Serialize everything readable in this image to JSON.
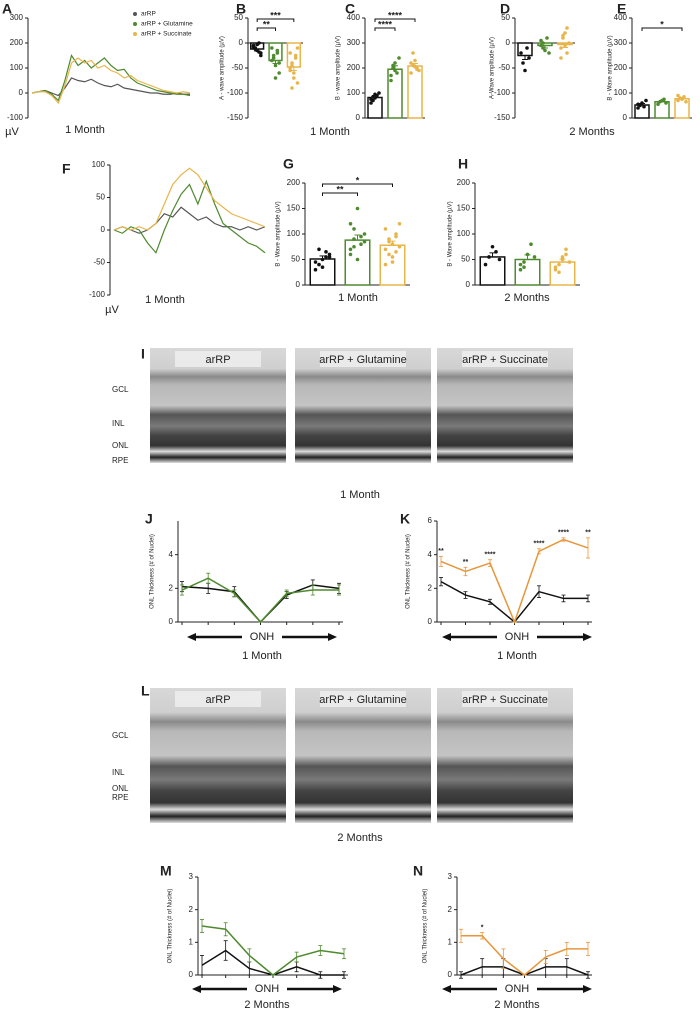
{
  "chart_data": [
    {
      "type": "line",
      "label": "A",
      "unit": "µV",
      "caption": "1 Month",
      "ylim": [
        -100,
        300
      ],
      "yticks": [
        -100,
        0,
        100,
        200,
        300
      ],
      "series": [
        {
          "name": "arRP",
          "color": "#555555",
          "values": [
            0,
            5,
            10,
            0,
            -10,
            20,
            60,
            50,
            45,
            55,
            40,
            30,
            25,
            35,
            20,
            15,
            10,
            5,
            0,
            0,
            -5,
            -5,
            0,
            -5,
            -5
          ]
        },
        {
          "name": "arRP + Glutamine",
          "color": "#4e8a2e",
          "values": [
            0,
            5,
            10,
            -5,
            -30,
            50,
            150,
            110,
            130,
            100,
            120,
            140,
            110,
            90,
            95,
            60,
            40,
            30,
            20,
            10,
            5,
            0,
            -5,
            -5,
            -10
          ]
        },
        {
          "name": "arRP + Succinate",
          "color": "#e8b54a",
          "values": [
            0,
            5,
            5,
            -10,
            -40,
            30,
            120,
            140,
            120,
            130,
            100,
            110,
            90,
            80,
            60,
            70,
            50,
            40,
            30,
            20,
            10,
            5,
            0,
            5,
            0
          ]
        }
      ]
    },
    {
      "type": "bar",
      "label": "B",
      "ylabel": "A - wave amplitude (µV)",
      "caption": "1 Month",
      "ylim": [
        -150,
        50
      ],
      "yticks": [
        -150,
        -100,
        -50,
        0,
        50
      ],
      "colors": [
        "#111111",
        "#4e8a2e",
        "#e8b54a"
      ],
      "values": [
        -12,
        -35,
        -48
      ],
      "errors": [
        4,
        6,
        7
      ],
      "points": [
        [
          -5,
          -10,
          -15,
          0,
          -20,
          -8,
          -12,
          -3,
          -18,
          -25
        ],
        [
          -10,
          -30,
          -45,
          -20,
          -60,
          -35,
          -25,
          -70,
          -15,
          -40
        ],
        [
          -20,
          -40,
          -60,
          -30,
          -80,
          -50,
          -45,
          -70,
          -25,
          -10,
          -55,
          -90
        ]
      ],
      "annotations": [
        {
          "text": "**",
          "groups": [
            0,
            1
          ]
        },
        {
          "text": "***",
          "groups": [
            0,
            2
          ]
        }
      ]
    },
    {
      "type": "bar",
      "label": "C",
      "ylabel": "B - wave amplitude (µV)",
      "ylim": [
        0,
        400
      ],
      "yticks": [
        0,
        100,
        200,
        300,
        400
      ],
      "colors": [
        "#111111",
        "#4e8a2e",
        "#e8b54a"
      ],
      "values": [
        82,
        195,
        208
      ],
      "errors": [
        8,
        14,
        10
      ],
      "points": [
        [
          60,
          70,
          80,
          90,
          100,
          75,
          85,
          95
        ],
        [
          150,
          200,
          220,
          180,
          240,
          170,
          210,
          190
        ],
        [
          180,
          210,
          230,
          200,
          190,
          220,
          260,
          205,
          195
        ]
      ],
      "annotations": [
        {
          "text": "****",
          "groups": [
            0,
            1
          ]
        },
        {
          "text": "****",
          "groups": [
            0,
            2
          ]
        }
      ]
    },
    {
      "type": "bar",
      "label": "D",
      "ylabel": "A-Wave amplitude (µV)",
      "caption": "2 Months",
      "ylim": [
        -150,
        50
      ],
      "yticks": [
        -150,
        -100,
        -50,
        0,
        50
      ],
      "colors": [
        "#111111",
        "#4e8a2e",
        "#e8b54a"
      ],
      "values": [
        -25,
        -5,
        -3
      ],
      "errors": [
        8,
        5,
        6
      ],
      "points": [
        [
          -20,
          -40,
          -55,
          -10,
          -30
        ],
        [
          -5,
          0,
          -15,
          10,
          -20,
          5,
          -10
        ],
        [
          -10,
          10,
          20,
          -20,
          0,
          -30,
          15,
          -5,
          30
        ]
      ],
      "annotations": []
    },
    {
      "type": "bar",
      "label": "E",
      "ylabel": "B - Wave amplitude (µV)",
      "ylim": [
        0,
        400
      ],
      "yticks": [
        0,
        100,
        200,
        300,
        400
      ],
      "colors": [
        "#111111",
        "#4e8a2e",
        "#e8b54a"
      ],
      "values": [
        52,
        65,
        77
      ],
      "errors": [
        6,
        5,
        5
      ],
      "points": [
        [
          40,
          50,
          60,
          45,
          70,
          55
        ],
        [
          55,
          65,
          70,
          75,
          60
        ],
        [
          70,
          80,
          75,
          85,
          65,
          90
        ]
      ],
      "annotations": [
        {
          "text": "*",
          "groups": [
            0,
            2
          ]
        }
      ]
    },
    {
      "type": "line",
      "label": "F",
      "unit": "µV",
      "caption": "1 Month",
      "ylim": [
        -100,
        100
      ],
      "yticks": [
        -100,
        -50,
        0,
        50,
        100
      ],
      "series": [
        {
          "color": "#555555",
          "values": [
            0,
            5,
            0,
            -5,
            0,
            10,
            25,
            20,
            35,
            25,
            15,
            20,
            10,
            5,
            5,
            0,
            5,
            0,
            5
          ]
        },
        {
          "color": "#4e8a2e",
          "values": [
            0,
            -5,
            5,
            0,
            -20,
            -35,
            0,
            30,
            55,
            70,
            40,
            75,
            40,
            10,
            0,
            -10,
            -20,
            -25,
            -35
          ]
        },
        {
          "color": "#e8b54a",
          "values": [
            0,
            5,
            0,
            5,
            0,
            10,
            40,
            70,
            85,
            95,
            85,
            65,
            45,
            35,
            25,
            20,
            15,
            10,
            5
          ]
        }
      ]
    },
    {
      "type": "bar",
      "label": "G",
      "ylabel": "B - Wave amplitude (µV)",
      "caption": "1 Month",
      "ylim": [
        0,
        200
      ],
      "yticks": [
        0,
        50,
        100,
        150,
        200
      ],
      "colors": [
        "#111111",
        "#4e8a2e",
        "#e8b54a"
      ],
      "values": [
        51,
        88,
        78
      ],
      "errors": [
        6,
        10,
        8
      ],
      "points": [
        [
          30,
          40,
          50,
          55,
          60,
          45,
          70,
          35,
          65,
          55
        ],
        [
          60,
          90,
          150,
          80,
          100,
          70,
          110,
          50,
          95,
          85,
          120,
          75
        ],
        [
          40,
          60,
          80,
          100,
          120,
          70,
          90,
          55,
          65,
          75,
          110,
          85,
          45,
          95
        ]
      ],
      "annotations": [
        {
          "text": "**",
          "groups": [
            0,
            1
          ]
        },
        {
          "text": "*",
          "groups": [
            0,
            2
          ]
        }
      ]
    },
    {
      "type": "bar",
      "label": "H",
      "ylabel": "B - Wave amplitude (µV)",
      "caption": "2 Months",
      "ylim": [
        0,
        200
      ],
      "yticks": [
        0,
        50,
        100,
        150,
        200
      ],
      "colors": [
        "#111111",
        "#4e8a2e",
        "#e8b54a"
      ],
      "values": [
        55,
        50,
        45
      ],
      "errors": [
        8,
        9,
        6
      ],
      "points": [
        [
          40,
          55,
          75,
          65,
          50
        ],
        [
          30,
          45,
          60,
          80,
          55,
          40,
          35
        ],
        [
          30,
          40,
          50,
          60,
          45,
          35,
          25,
          55,
          70
        ]
      ],
      "annotations": []
    },
    {
      "type": "errorline",
      "label": "J",
      "ylabel": "ONL Thickness (# of Nuclei)",
      "xlabel": "ONH",
      "caption": "1 Month",
      "ylim": [
        0,
        6
      ],
      "yticks": [
        0,
        2,
        4
      ],
      "series": [
        {
          "color": "#111111",
          "values": [
            2.1,
            2.0,
            1.8,
            0,
            1.6,
            2.2,
            2.0
          ],
          "errors": [
            0.3,
            0.3,
            0.3,
            0,
            0.2,
            0.3,
            0.3
          ]
        },
        {
          "color": "#4e8a2e",
          "values": [
            1.9,
            2.6,
            1.7,
            0,
            1.7,
            1.9,
            1.9
          ],
          "errors": [
            0.3,
            0.3,
            0.2,
            0,
            0.2,
            0.3,
            0.3
          ]
        }
      ]
    },
    {
      "type": "errorline",
      "label": "K",
      "ylabel": "ONL Thickness (# of Nuclei)",
      "xlabel": "ONH",
      "caption": "1 Month",
      "ylim": [
        0,
        6
      ],
      "yticks": [
        0,
        2,
        4,
        6
      ],
      "series": [
        {
          "color": "#111111",
          "values": [
            2.4,
            1.6,
            1.2,
            0,
            1.8,
            1.4,
            1.4
          ],
          "errors": [
            0.25,
            0.2,
            0.15,
            0,
            0.35,
            0.2,
            0.2
          ]
        },
        {
          "color": "#e8963a",
          "values": [
            3.6,
            3.0,
            3.5,
            0,
            4.2,
            4.9,
            4.4
          ],
          "errors": [
            0.3,
            0.25,
            0.2,
            0,
            0.15,
            0.1,
            0.6
          ],
          "point_labels": [
            "**",
            "**",
            "****",
            null,
            "****",
            "****",
            "**"
          ]
        }
      ]
    },
    {
      "type": "errorline",
      "label": "M",
      "ylabel": "ONL Thickness (# of Nuclei)",
      "xlabel": "ONH",
      "caption": "2 Months",
      "ylim": [
        0,
        3
      ],
      "yticks": [
        0,
        1,
        2,
        3
      ],
      "series": [
        {
          "color": "#111111",
          "values": [
            0.3,
            0.75,
            0.2,
            0,
            0.25,
            0,
            0
          ],
          "errors": [
            0.3,
            0.3,
            0.2,
            0,
            0.15,
            0.1,
            0.1
          ]
        },
        {
          "color": "#4e8a2e",
          "values": [
            1.5,
            1.4,
            0.6,
            0,
            0.55,
            0.75,
            0.65
          ],
          "errors": [
            0.2,
            0.2,
            0.2,
            0,
            0.15,
            0.15,
            0.15
          ]
        }
      ]
    },
    {
      "type": "errorline",
      "label": "N",
      "ylabel": "ONL Thickness (# of Nuclei)",
      "xlabel": "ONH",
      "caption": "2 Months",
      "ylim": [
        0,
        3
      ],
      "yticks": [
        0,
        1,
        2,
        3
      ],
      "series": [
        {
          "color": "#111111",
          "values": [
            0,
            0.25,
            0.25,
            0,
            0.25,
            0.25,
            0
          ],
          "errors": [
            0.1,
            0.25,
            0.25,
            0,
            0.25,
            0.25,
            0.1
          ]
        },
        {
          "color": "#e8963a",
          "values": [
            1.2,
            1.2,
            0.5,
            0,
            0.55,
            0.8,
            0.8
          ],
          "errors": [
            0.2,
            0.1,
            0.3,
            0,
            0.2,
            0.2,
            0.2
          ],
          "point_labels": [
            null,
            "*",
            null,
            null,
            null,
            null,
            null
          ]
        }
      ]
    }
  ],
  "image_panels": [
    {
      "label": "I",
      "titles": [
        "arRP",
        "arRP + Glutamine",
        "arRP + Succinate"
      ],
      "layers": [
        "GCL",
        "INL",
        "ONL",
        "RPE"
      ],
      "caption": "1 Month"
    },
    {
      "label": "L",
      "titles": [
        "arRP",
        "arRP + Glutamine",
        "arRP  + Succinate"
      ],
      "layers": [
        "GCL",
        "INL",
        "ONL",
        "RPE"
      ],
      "caption": "2 Months"
    }
  ]
}
